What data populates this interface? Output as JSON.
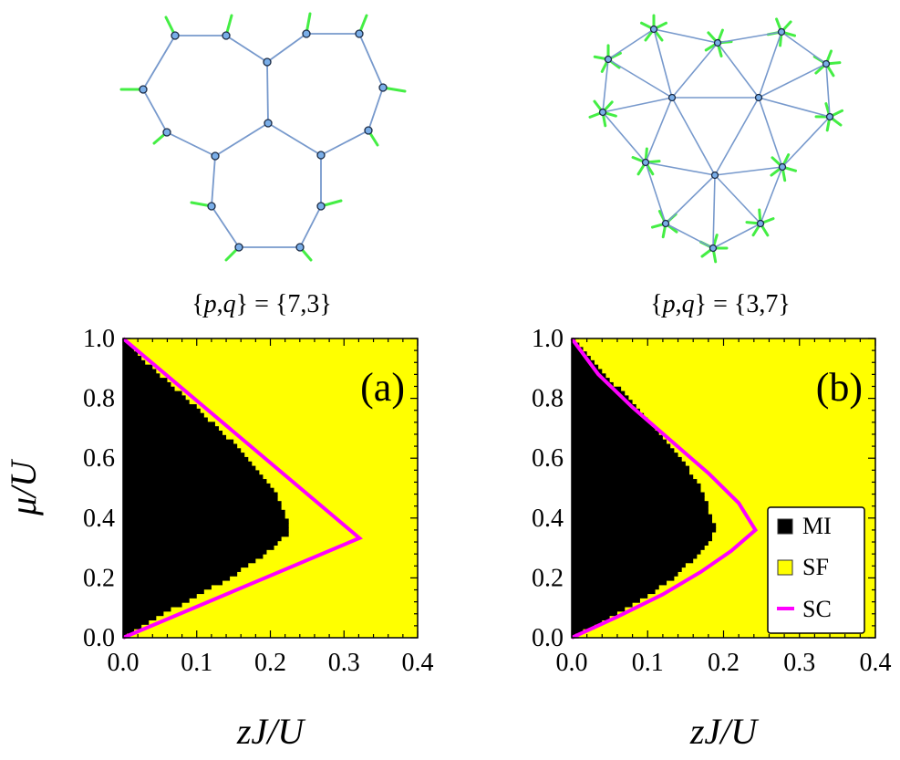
{
  "lattice_labels": [
    {
      "open": "{",
      "p": "p",
      "comma": ",",
      "q": "q",
      "close": "}",
      "equals": " = ",
      "value": "{7,3}"
    },
    {
      "open": "{",
      "p": "p",
      "comma": ",",
      "q": "q",
      "close": "}",
      "equals": " = ",
      "value": "{3,7}"
    }
  ],
  "colors": {
    "MI": "#000000",
    "SF": "#ffff00",
    "SC": "#ff00ff",
    "edge": "#7799cc",
    "node": "#7aaee8",
    "stub": "#44ee44"
  },
  "chart_data": [
    {
      "type": "heatmap",
      "panel_label": "(a)",
      "xlabel": "zJ/U",
      "ylabel": "μ/U",
      "xlim": [
        0,
        0.4
      ],
      "ylim": [
        0,
        1
      ],
      "xticks": [
        "0.0",
        "0.1",
        "0.2",
        "0.3",
        "0.4"
      ],
      "yticks": [
        "0.0",
        "0.2",
        "0.4",
        "0.6",
        "0.8",
        "1.0"
      ],
      "regions": [
        "MI",
        "SF"
      ],
      "mi_boundary": {
        "mu": [
          0.0,
          0.1,
          0.2,
          0.3,
          0.35,
          0.4,
          0.5,
          0.6,
          0.7,
          0.8,
          0.9,
          1.0
        ],
        "zJ": [
          0.0,
          0.07,
          0.145,
          0.205,
          0.225,
          0.222,
          0.205,
          0.17,
          0.13,
          0.085,
          0.04,
          0.0
        ]
      },
      "sc_line": {
        "x": [
          0.0,
          0.321,
          0.0
        ],
        "y": [
          0.0,
          0.333,
          1.0
        ]
      },
      "legend": null
    },
    {
      "type": "heatmap",
      "panel_label": "(b)",
      "xlabel": "zJ/U",
      "ylabel": "",
      "xlim": [
        0,
        0.4
      ],
      "ylim": [
        0,
        1
      ],
      "xticks": [
        "0.0",
        "0.1",
        "0.2",
        "0.3",
        "0.4"
      ],
      "yticks": [
        "0.0",
        "0.2",
        "0.4",
        "0.6",
        "0.8",
        "1.0"
      ],
      "regions": [
        "MI",
        "SF"
      ],
      "mi_boundary": {
        "mu": [
          0.0,
          0.1,
          0.2,
          0.3,
          0.36,
          0.4,
          0.5,
          0.6,
          0.7,
          0.8,
          0.9,
          1.0
        ],
        "zJ": [
          0.0,
          0.075,
          0.135,
          0.175,
          0.19,
          0.185,
          0.17,
          0.145,
          0.11,
          0.075,
          0.035,
          0.0
        ]
      },
      "sc_line": {
        "x": [
          0.0,
          0.06,
          0.12,
          0.17,
          0.21,
          0.242,
          0.22,
          0.18,
          0.13,
          0.08,
          0.035,
          0.0
        ],
        "y": [
          0.0,
          0.07,
          0.145,
          0.22,
          0.29,
          0.36,
          0.45,
          0.55,
          0.66,
          0.77,
          0.88,
          1.0
        ]
      },
      "legend": {
        "placement": "bottom-right",
        "entries": [
          "MI",
          "SF",
          "SC"
        ]
      }
    }
  ]
}
